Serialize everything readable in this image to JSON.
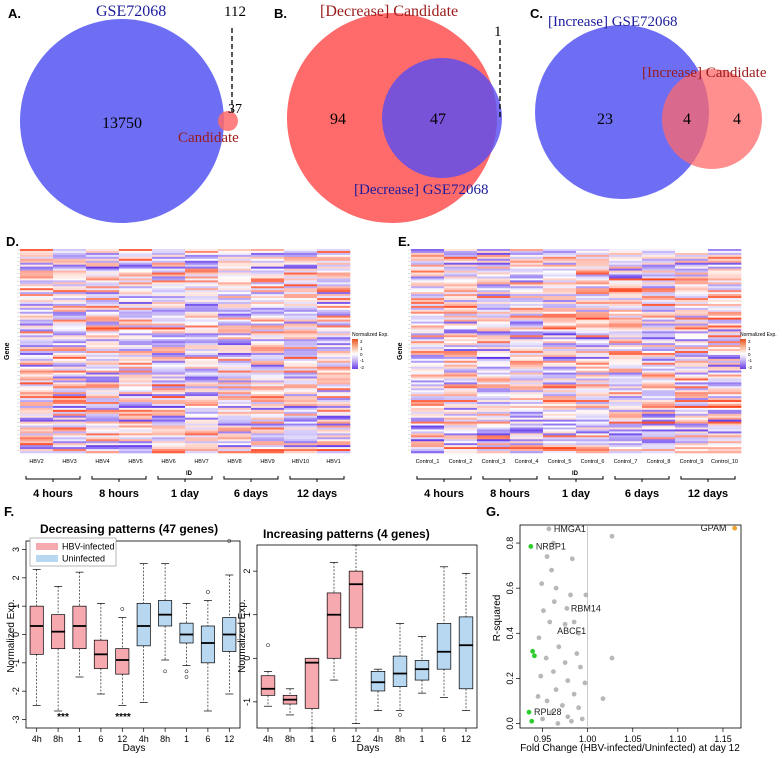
{
  "colors": {
    "venn_blue": "#6e6ef5",
    "venn_red": "#ff6a6a",
    "venn_overlap": "#7a3ed4",
    "dark_red": "#9b1b1b",
    "navy": "#1c1c9c",
    "hbv_fill": "#f7a9b0",
    "uninf_fill": "#b8d8f2",
    "scatter_grey": "#b8b8b8",
    "scatter_green": "#2ecc2e",
    "scatter_orange": "#f0a030"
  },
  "panel_a": {
    "letter": "A.",
    "set1_label": "GSE72068",
    "set2_label": "Candidate",
    "only1": "13750",
    "overlap": "37",
    "only2": "112"
  },
  "panel_b": {
    "letter": "B.",
    "set1_label": "[Decrease] Candidate",
    "set2_label": "[Decrease] GSE72068",
    "only1": "94",
    "overlap": "47",
    "only2": "1"
  },
  "panel_c": {
    "letter": "C.",
    "set1_label": "[Increase] GSE72068",
    "set2_label": "[Increase] Candidate",
    "only1": "23",
    "overlap": "4",
    "only2": "4"
  },
  "panel_d": {
    "letter": "D.",
    "ylabel": "Gene",
    "xlabel": "ID",
    "legend_title": "Normalized Exp.",
    "legend_ticks": [
      "2",
      "1",
      "0",
      "-1",
      "-2"
    ],
    "columns": [
      "HBV2",
      "HBV3",
      "HBV4",
      "HBV5",
      "HBV6",
      "HBV7",
      "HBV8",
      "HBV9",
      "HBV10",
      "HBV1"
    ],
    "groups": [
      "4 hours",
      "8 hours",
      "1 day",
      "6 days",
      "12 days"
    ]
  },
  "panel_e": {
    "letter": "E.",
    "ylabel": "Gene",
    "xlabel": "ID",
    "legend_title": "Normalized Exp.",
    "legend_ticks": [
      "2",
      "1",
      "0",
      "-1",
      "-2"
    ],
    "columns": [
      "Control_1",
      "Control_2",
      "Control_3",
      "Control_4",
      "Control_5",
      "Control_6",
      "Control_7",
      "Control_8",
      "Control_9",
      "Control_10"
    ],
    "groups": [
      "4 hours",
      "8 hours",
      "1 day",
      "6 days",
      "12 days"
    ]
  },
  "panel_f": {
    "letter": "F.",
    "left_title": "Decreasing patterns (47 genes)",
    "right_title": "Increasing patterns (4 genes)",
    "ylabel": "Normalized Exp.",
    "xlabel": "Days",
    "legend": [
      "HBV-infected",
      "Uninfected"
    ],
    "ticks_x": [
      "4h",
      "8h",
      "1",
      "6",
      "12",
      "4h",
      "8h",
      "1",
      "6",
      "12"
    ],
    "left_yticks": [
      "-3",
      "-2",
      "-1",
      "0",
      "1",
      "2",
      "3"
    ],
    "right_yticks": [
      "-1",
      "0",
      "1",
      "2"
    ],
    "sig_left": [
      "***",
      "****"
    ]
  },
  "panel_g": {
    "letter": "G.",
    "xlabel": "Fold Change (HBV-infected/Uninfected) at day 12",
    "ylabel": "R-squared",
    "xticks": [
      "0.95",
      "1.00",
      "1.05",
      "1.10",
      "1.15"
    ],
    "yticks": [
      "0.0",
      "0.2",
      "0.4",
      "0.6",
      "0.8"
    ],
    "labels": {
      "gpam": "GPAM",
      "hmga1": "HMGA1",
      "nrbp1": "NRBP1",
      "rbm14": "RBM14",
      "abcf1": "ABCF1",
      "rpl28": "RPL28"
    }
  },
  "chart_data": [
    {
      "type": "box",
      "title": "Decreasing patterns (47 genes)",
      "xlabel": "Days",
      "ylabel": "Normalized Exp.",
      "ylim": [
        -3.3,
        3.3
      ],
      "categories": [
        "4h",
        "8h",
        "1",
        "6",
        "12"
      ],
      "series": [
        {
          "name": "HBV-infected",
          "boxes": [
            {
              "min": -2.5,
              "q1": -0.7,
              "median": 0.3,
              "q3": 1.0,
              "max": 2.3,
              "outliers": []
            },
            {
              "min": -2.7,
              "q1": -0.5,
              "median": 0.1,
              "q3": 0.7,
              "max": 1.7,
              "outliers": []
            },
            {
              "min": -1.5,
              "q1": -0.5,
              "median": 0.3,
              "q3": 1.0,
              "max": 2.2,
              "outliers": []
            },
            {
              "min": -2.1,
              "q1": -1.2,
              "median": -0.7,
              "q3": -0.2,
              "max": 1.1,
              "outliers": []
            },
            {
              "min": -2.5,
              "q1": -1.4,
              "median": -0.9,
              "q3": -0.5,
              "max": 0.6,
              "outliers": [
                0.9
              ]
            }
          ]
        },
        {
          "name": "Uninfected",
          "boxes": [
            {
              "min": -2.4,
              "q1": -0.4,
              "median": 0.3,
              "q3": 1.1,
              "max": 2.5,
              "outliers": []
            },
            {
              "min": -0.9,
              "q1": 0.3,
              "median": 0.7,
              "q3": 1.2,
              "max": 2.5,
              "outliers": [
                -1.3
              ]
            },
            {
              "min": -1.1,
              "q1": -0.3,
              "median": 0.0,
              "q3": 0.4,
              "max": 1.1,
              "outliers": [
                -1.3,
                -1.5
              ]
            },
            {
              "min": -2.7,
              "q1": -1.0,
              "median": -0.3,
              "q3": 0.3,
              "max": 1.2,
              "outliers": [
                1.5
              ]
            },
            {
              "min": -2.1,
              "q1": -0.6,
              "median": 0.0,
              "q3": 0.6,
              "max": 2.1,
              "outliers": [
                3.3
              ]
            }
          ]
        }
      ]
    },
    {
      "type": "box",
      "title": "Increasing patterns (4 genes)",
      "xlabel": "Days",
      "ylabel": "Normalized Exp.",
      "ylim": [
        -1.6,
        2.6
      ],
      "categories": [
        "4h",
        "8h",
        "1",
        "6",
        "12"
      ],
      "series": [
        {
          "name": "HBV-infected",
          "boxes": [
            {
              "min": -1.1,
              "q1": -0.85,
              "median": -0.7,
              "q3": -0.4,
              "max": -0.3,
              "outliers": [
                0.3
              ]
            },
            {
              "min": -1.3,
              "q1": -1.05,
              "median": -0.95,
              "q3": -0.85,
              "max": -0.7,
              "outliers": []
            },
            {
              "min": -1.6,
              "q1": -1.15,
              "median": -0.1,
              "q3": 0.0,
              "max": 0.0,
              "outliers": []
            },
            {
              "min": -0.5,
              "q1": 0.0,
              "median": 1.0,
              "q3": 1.5,
              "max": 2.2,
              "outliers": []
            },
            {
              "min": -1.5,
              "q1": 0.7,
              "median": 1.7,
              "q3": 2.0,
              "max": 2.6,
              "outliers": []
            }
          ]
        },
        {
          "name": "Uninfected",
          "boxes": [
            {
              "min": -1.2,
              "q1": -0.75,
              "median": -0.55,
              "q3": -0.3,
              "max": -0.25,
              "outliers": []
            },
            {
              "min": -1.2,
              "q1": -0.65,
              "median": -0.35,
              "q3": 0.05,
              "max": 0.8,
              "outliers": [
                -1.3
              ]
            },
            {
              "min": -0.8,
              "q1": -0.5,
              "median": -0.25,
              "q3": -0.05,
              "max": 0.5,
              "outliers": []
            },
            {
              "min": -0.9,
              "q1": -0.25,
              "median": 0.15,
              "q3": 0.8,
              "max": 2.1,
              "outliers": []
            },
            {
              "min": -1.2,
              "q1": -0.7,
              "median": 0.3,
              "q3": 0.95,
              "max": 1.95,
              "outliers": []
            }
          ]
        }
      ]
    },
    {
      "type": "scatter",
      "title": "",
      "xlabel": "Fold Change (HBV-infected/Uninfected) at day 12",
      "ylabel": "R-squared",
      "xlim": [
        0.925,
        1.17
      ],
      "ylim": [
        -0.02,
        0.88
      ],
      "points": [
        {
          "x": 1.163,
          "y": 0.866,
          "label": "GPAM",
          "color": "orange"
        },
        {
          "x": 0.957,
          "y": 0.863,
          "label": "HMGA1",
          "color": "grey"
        },
        {
          "x": 0.937,
          "y": 0.785,
          "label": "NRBP1",
          "color": "green"
        },
        {
          "x": 0.977,
          "y": 0.51,
          "label": "RBM14",
          "color": "grey"
        },
        {
          "x": 0.975,
          "y": 0.44,
          "label": "ABCF1",
          "color": "grey"
        },
        {
          "x": 0.935,
          "y": 0.05,
          "label": "RPL28",
          "color": "green"
        },
        {
          "x": 0.938,
          "y": 0.01,
          "label": "",
          "color": "green"
        },
        {
          "x": 0.939,
          "y": 0.32,
          "label": "",
          "color": "green"
        },
        {
          "x": 0.941,
          "y": 0.3,
          "label": "",
          "color": "green"
        },
        {
          "x": 1.027,
          "y": 0.83,
          "label": "",
          "color": "grey"
        },
        {
          "x": 1.027,
          "y": 0.29,
          "label": "",
          "color": "grey"
        },
        {
          "x": 1.017,
          "y": 0.11,
          "label": "",
          "color": "grey"
        },
        {
          "x": 0.962,
          "y": 0.8,
          "label": "",
          "color": "grey"
        },
        {
          "x": 0.955,
          "y": 0.74,
          "label": "",
          "color": "grey"
        },
        {
          "x": 0.983,
          "y": 0.73,
          "label": "",
          "color": "grey"
        },
        {
          "x": 0.96,
          "y": 0.68,
          "label": "",
          "color": "grey"
        },
        {
          "x": 0.949,
          "y": 0.62,
          "label": "",
          "color": "grey"
        },
        {
          "x": 0.965,
          "y": 0.6,
          "label": "",
          "color": "grey"
        },
        {
          "x": 0.981,
          "y": 0.57,
          "label": "",
          "color": "grey"
        },
        {
          "x": 0.998,
          "y": 0.57,
          "label": "",
          "color": "grey"
        },
        {
          "x": 0.963,
          "y": 0.54,
          "label": "",
          "color": "grey"
        },
        {
          "x": 0.951,
          "y": 0.5,
          "label": "",
          "color": "grey"
        },
        {
          "x": 0.985,
          "y": 0.45,
          "label": "",
          "color": "grey"
        },
        {
          "x": 0.958,
          "y": 0.45,
          "label": "",
          "color": "grey"
        },
        {
          "x": 0.99,
          "y": 0.4,
          "label": "",
          "color": "grey"
        },
        {
          "x": 0.946,
          "y": 0.38,
          "label": "",
          "color": "grey"
        },
        {
          "x": 0.968,
          "y": 0.34,
          "label": "",
          "color": "grey"
        },
        {
          "x": 0.988,
          "y": 0.31,
          "label": "",
          "color": "grey"
        },
        {
          "x": 0.954,
          "y": 0.29,
          "label": "",
          "color": "grey"
        },
        {
          "x": 0.975,
          "y": 0.27,
          "label": "",
          "color": "grey"
        },
        {
          "x": 0.992,
          "y": 0.25,
          "label": "",
          "color": "grey"
        },
        {
          "x": 0.962,
          "y": 0.23,
          "label": "",
          "color": "grey"
        },
        {
          "x": 0.948,
          "y": 0.21,
          "label": "",
          "color": "grey"
        },
        {
          "x": 0.978,
          "y": 0.19,
          "label": "",
          "color": "grey"
        },
        {
          "x": 0.997,
          "y": 0.18,
          "label": "",
          "color": "grey"
        },
        {
          "x": 0.965,
          "y": 0.15,
          "label": "",
          "color": "grey"
        },
        {
          "x": 0.985,
          "y": 0.13,
          "label": "",
          "color": "grey"
        },
        {
          "x": 0.955,
          "y": 0.1,
          "label": "",
          "color": "grey"
        },
        {
          "x": 0.972,
          "y": 0.08,
          "label": "",
          "color": "grey"
        },
        {
          "x": 0.99,
          "y": 0.07,
          "label": "",
          "color": "grey"
        },
        {
          "x": 0.96,
          "y": 0.05,
          "label": "",
          "color": "grey"
        },
        {
          "x": 0.978,
          "y": 0.03,
          "label": "",
          "color": "grey"
        },
        {
          "x": 0.994,
          "y": 0.02,
          "label": "",
          "color": "grey"
        },
        {
          "x": 0.95,
          "y": 0.02,
          "label": "",
          "color": "grey"
        },
        {
          "x": 0.982,
          "y": 0.01,
          "label": "",
          "color": "grey"
        },
        {
          "x": 0.967,
          "y": 0.0,
          "label": "",
          "color": "grey"
        },
        {
          "x": 0.945,
          "y": 0.12,
          "label": "",
          "color": "grey"
        }
      ]
    }
  ]
}
